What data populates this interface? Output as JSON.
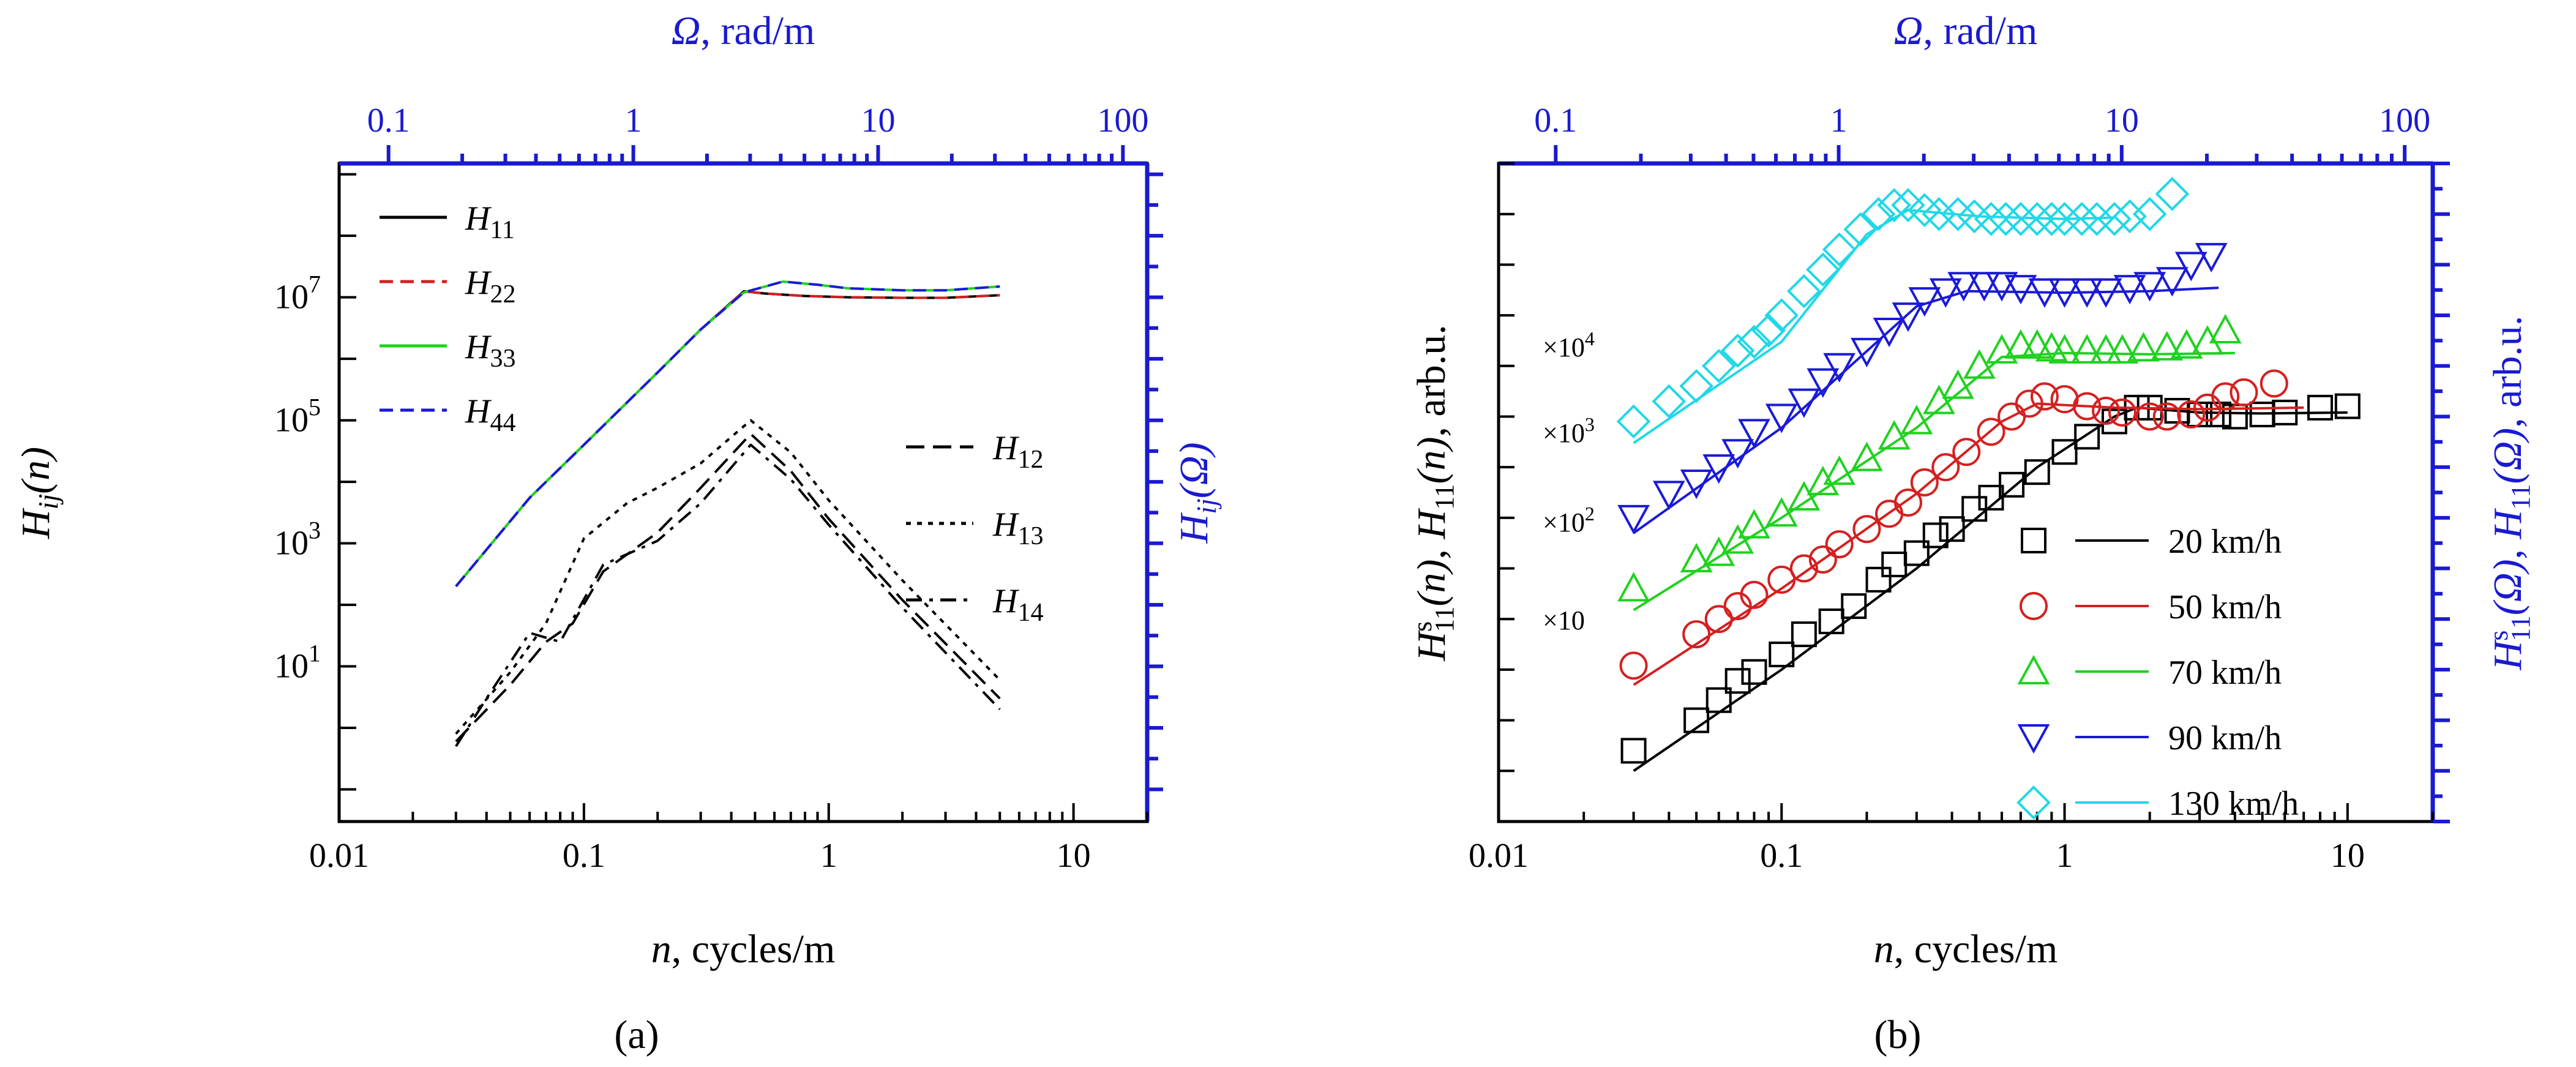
{
  "colors": {
    "black": "#000000",
    "blue_axis": "#1a1ad0",
    "red": "#d42020",
    "green": "#1fd21f",
    "blue": "#1a1ad8",
    "cyan": "#20d8e6"
  },
  "captions": {
    "a": "(a)",
    "b": "(b)"
  },
  "chart_data": [
    {
      "id": "panel_a",
      "type": "line",
      "xscale": "log",
      "yscale": "log",
      "xlim": [
        0.01,
        20
      ],
      "ylim": [
        0.03,
        1500000000
      ],
      "xticks": [
        0.01,
        0.1,
        1,
        10
      ],
      "xtick_labels": [
        "0.01",
        "0.1",
        "1",
        "10"
      ],
      "yticks": [
        10,
        1000,
        100000,
        10000000
      ],
      "ytick_labels": [
        "10",
        "10",
        "10",
        "10"
      ],
      "ytick_exponents": [
        "1",
        "3",
        "5",
        "7"
      ],
      "xlabel": {
        "italic": "n",
        "rest": ", cycles/m"
      },
      "ylabel": {
        "main": "H",
        "sub": "ij",
        "rest": "(n)"
      },
      "top_axis": {
        "label": {
          "italic": "Ω",
          "rest": ", rad/m"
        },
        "xlim_rad": [
          0.0628,
          125.7
        ],
        "ticks": [
          0.1,
          1,
          10,
          100
        ],
        "tick_labels": [
          "0.1",
          "1",
          "10",
          "100"
        ]
      },
      "right_axis": {
        "label": {
          "main": "H",
          "sub": "ij",
          "rest": "(Ω)"
        }
      },
      "legend_top": [
        "H11",
        "H22",
        "H33",
        "H44"
      ],
      "legend_bottom": [
        "H12",
        "H13",
        "H14"
      ],
      "series": [
        {
          "name": "H11",
          "color": "black",
          "dash": "solid",
          "x": [
            0.03,
            0.06,
            0.1,
            0.2,
            0.3,
            0.45,
            0.55,
            0.8,
            1.2,
            2,
            3,
            5
          ],
          "y": [
            200,
            5500,
            40000,
            600000,
            3000000,
            12500000,
            11500000,
            10500000,
            10000000,
            9800000,
            9800000,
            10800000
          ]
        },
        {
          "name": "H22",
          "color": "red",
          "dash": "dashed",
          "x": [
            0.03,
            0.06,
            0.1,
            0.2,
            0.3,
            0.45,
            0.55,
            0.8,
            1.2,
            2,
            3,
            5
          ],
          "y": [
            200,
            5500,
            40000,
            600000,
            3000000,
            12500000,
            11500000,
            10500000,
            10000000,
            9800000,
            9800000,
            10800000
          ]
        },
        {
          "name": "H33",
          "color": "green",
          "dash": "solid",
          "x": [
            0.03,
            0.06,
            0.1,
            0.2,
            0.3,
            0.45,
            0.65,
            0.9,
            1.2,
            2,
            3,
            5
          ],
          "y": [
            200,
            5500,
            40000,
            600000,
            3000000,
            12000000,
            18000000,
            16000000,
            14000000,
            13000000,
            13000000,
            15000000
          ]
        },
        {
          "name": "H44",
          "color": "blue",
          "dash": "dashed",
          "x": [
            0.03,
            0.06,
            0.1,
            0.2,
            0.3,
            0.45,
            0.65,
            0.9,
            1.2,
            2,
            3,
            5
          ],
          "y": [
            200,
            5500,
            40000,
            600000,
            3000000,
            12000000,
            18000000,
            16000000,
            14000000,
            13000000,
            13000000,
            15000000
          ]
        },
        {
          "name": "H12",
          "color": "black",
          "dash": "longdash",
          "x": [
            0.03,
            0.05,
            0.07,
            0.09,
            0.12,
            0.2,
            0.3,
            0.48,
            0.7,
            1,
            2,
            5
          ],
          "y": [
            0.6,
            5,
            25,
            50,
            350,
            1500,
            8000,
            60000,
            15000,
            2500,
            120,
            3
          ]
        },
        {
          "name": "H13",
          "color": "black",
          "dash": "dotted",
          "x": [
            0.03,
            0.05,
            0.07,
            0.1,
            0.15,
            0.2,
            0.3,
            0.48,
            0.7,
            1,
            2,
            5
          ],
          "y": [
            0.8,
            8,
            50,
            1200,
            4500,
            8000,
            20000,
            100000,
            30000,
            5000,
            250,
            6
          ]
        },
        {
          "name": "H14",
          "color": "black",
          "dash": "dashdot",
          "x": [
            0.03,
            0.04,
            0.06,
            0.08,
            0.12,
            0.2,
            0.3,
            0.48,
            0.7,
            1,
            2,
            5
          ],
          "y": [
            0.5,
            3,
            35,
            25,
            450,
            1100,
            4500,
            40000,
            11000,
            2000,
            90,
            2
          ]
        }
      ]
    },
    {
      "id": "panel_b",
      "type": "line+scatter",
      "xscale": "log",
      "yscale": "log",
      "xlim": [
        0.01,
        20
      ],
      "ylim": [
        1,
        10000000000000.0
      ],
      "xticks": [
        0.01,
        0.1,
        1,
        10
      ],
      "xtick_labels": [
        "0.01",
        "0.1",
        "1",
        "10"
      ],
      "xlabel": {
        "italic": "n",
        "rest": ", cycles/m"
      },
      "ylabel": {
        "text": "H^s_11(n), H_11(n), arb.u."
      },
      "top_axis": {
        "label": {
          "italic": "Ω",
          "rest": ", rad/m"
        },
        "ticks": [
          0.1,
          1,
          10,
          100
        ],
        "tick_labels": [
          "0.1",
          "1",
          "10",
          "100"
        ]
      },
      "right_axis": {
        "label": {
          "text": "H^s_11(Ω), H_11(Ω), arb.u."
        }
      },
      "scale_factors": [
        {
          "label": "×10",
          "series": "50 km/h"
        },
        {
          "label": "×10",
          "exp": "2",
          "series": "70 km/h"
        },
        {
          "label": "×10",
          "exp": "3",
          "series": "90 km/h"
        },
        {
          "label": "×10",
          "exp": "4",
          "series": "130 km/h"
        }
      ],
      "series": [
        {
          "name": "20 km/h",
          "color": "black",
          "marker": "square",
          "x": [
            0.03,
            0.05,
            0.06,
            0.07,
            0.08,
            0.1,
            0.12,
            0.15,
            0.18,
            0.22,
            0.25,
            0.3,
            0.35,
            0.4,
            0.48,
            0.55,
            0.65,
            0.8,
            1,
            1.2,
            1.5,
            1.8,
            2,
            2.5,
            3,
            3.5,
            4,
            5,
            6,
            8,
            10
          ],
          "y": [
            25,
            100,
            250,
            600,
            900,
            2000,
            5000,
            9000,
            18000,
            60000,
            120000,
            200000,
            450000,
            600000,
            1500000,
            2500000,
            4500000,
            8000000,
            20000000,
            40000000,
            80000000,
            150000000,
            150000000,
            130000000,
            110000000,
            110000000,
            100000000,
            110000000,
            120000000,
            150000000,
            160000000
          ],
          "fit_x": [
            0.03,
            0.1,
            0.3,
            0.8,
            1.5,
            1.8,
            3,
            5,
            10
          ],
          "fit_y": [
            10,
            1000,
            100000,
            10000000,
            100000000,
            150000000,
            120000000,
            115000000,
            120000000
          ]
        },
        {
          "name": "50 km/h",
          "color": "red",
          "marker": "circle",
          "x": [
            0.03,
            0.05,
            0.06,
            0.07,
            0.08,
            0.1,
            0.12,
            0.14,
            0.16,
            0.2,
            0.24,
            0.28,
            0.32,
            0.38,
            0.45,
            0.55,
            0.65,
            0.75,
            0.85,
            1,
            1.2,
            1.4,
            1.6,
            2,
            2.3,
            2.8,
            3.2,
            3.7,
            4.3,
            5.5
          ],
          "y": [
            1200,
            5000,
            10000,
            18000,
            30000,
            60000,
            100000,
            150000,
            300000,
            600000,
            1200000,
            2000000,
            5000000,
            10000000,
            20000000,
            50000000,
            100000000,
            180000000,
            250000000,
            220000000,
            160000000,
            130000000,
            120000000,
            100000000,
            100000000,
            110000000,
            150000000,
            250000000,
            300000000,
            450000000
          ],
          "fit_x": [
            0.03,
            0.1,
            0.3,
            0.6,
            0.8,
            1.5,
            3,
            7
          ],
          "fit_y": [
            500,
            40000,
            3000000,
            80000000,
            180000000,
            150000000,
            140000000,
            150000000
          ]
        },
        {
          "name": "70 km/h",
          "color": "green",
          "marker": "triangle-up",
          "x": [
            0.03,
            0.05,
            0.06,
            0.07,
            0.08,
            0.1,
            0.12,
            0.14,
            0.16,
            0.2,
            0.25,
            0.3,
            0.36,
            0.42,
            0.5,
            0.6,
            0.7,
            0.8,
            0.9,
            1,
            1.2,
            1.4,
            1.6,
            1.9,
            2.3,
            2.7,
            3.2,
            3.7
          ],
          "y": [
            40000,
            150000,
            200000,
            350000,
            700000,
            1200000,
            2500000,
            5000000,
            8000000,
            15000000,
            40000000,
            80000000,
            200000000,
            400000000,
            1000000000,
            2000000000,
            2500000000,
            2500000000,
            2200000000,
            2000000000,
            2000000000,
            2000000000,
            2000000000,
            2200000000,
            2300000000,
            2500000000,
            3000000000,
            5000000000
          ],
          "fit_x": [
            0.03,
            0.1,
            0.3,
            0.6,
            1,
            2,
            4
          ],
          "fit_y": [
            15000,
            1000000,
            60000000,
            1500000000,
            1800000000,
            1700000000,
            1800000000
          ]
        },
        {
          "name": "90 km/h",
          "color": "blue",
          "marker": "triangle-down",
          "x": [
            0.03,
            0.04,
            0.05,
            0.06,
            0.07,
            0.08,
            0.1,
            0.12,
            0.14,
            0.16,
            0.2,
            0.24,
            0.28,
            0.32,
            0.38,
            0.44,
            0.52,
            0.6,
            0.7,
            0.85,
            1,
            1.2,
            1.4,
            1.7,
            2,
            2.4,
            2.8,
            3.3
          ],
          "y": [
            1000000,
            3000000,
            5000000,
            10000000,
            20000000,
            50000000,
            100000000,
            200000000,
            500000000,
            1000000000,
            2000000000,
            5000000000,
            10000000000,
            20000000000,
            30000000000,
            40000000000,
            40000000000,
            40000000000,
            35000000000,
            30000000000,
            30000000000,
            30000000000,
            30000000000,
            35000000000,
            40000000000,
            50000000000,
            100000000000,
            150000000000
          ],
          "fit_x": [
            0.03,
            0.1,
            0.3,
            0.45,
            1,
            2,
            3.5
          ],
          "fit_y": [
            500000,
            60000000,
            15000000000,
            30000000000,
            28000000000,
            30000000000,
            35000000000
          ]
        },
        {
          "name": "130 km/h",
          "color": "cyan",
          "marker": "diamond",
          "x": [
            0.03,
            0.04,
            0.05,
            0.06,
            0.07,
            0.08,
            0.09,
            0.1,
            0.12,
            0.14,
            0.16,
            0.19,
            0.22,
            0.25,
            0.28,
            0.32,
            0.36,
            0.42,
            0.48,
            0.55,
            0.62,
            0.7,
            0.8,
            0.9,
            1,
            1.15,
            1.3,
            1.5,
            1.7,
            2,
            2.4
          ],
          "y": [
            80000000,
            200000000,
            400000000,
            1000000000,
            2000000000,
            3000000000,
            5000000000,
            10000000000,
            30000000000,
            80000000000,
            200000000000,
            500000000000,
            1000000000000,
            1500000000000,
            1500000000000,
            1200000000000,
            1000000000000,
            1000000000000,
            900000000000,
            800000000000,
            800000000000,
            800000000000,
            800000000000,
            800000000000,
            800000000000,
            800000000000,
            800000000000,
            800000000000,
            900000000000,
            1000000000000,
            2500000000000
          ],
          "fit_x": [
            0.03,
            0.1,
            0.2,
            0.28,
            0.5,
            1,
            1.5
          ],
          "fit_y": [
            30000000,
            3000000000,
            400000000000,
            1200000000000,
            900000000000,
            800000000000,
            850000000000
          ]
        }
      ]
    }
  ]
}
